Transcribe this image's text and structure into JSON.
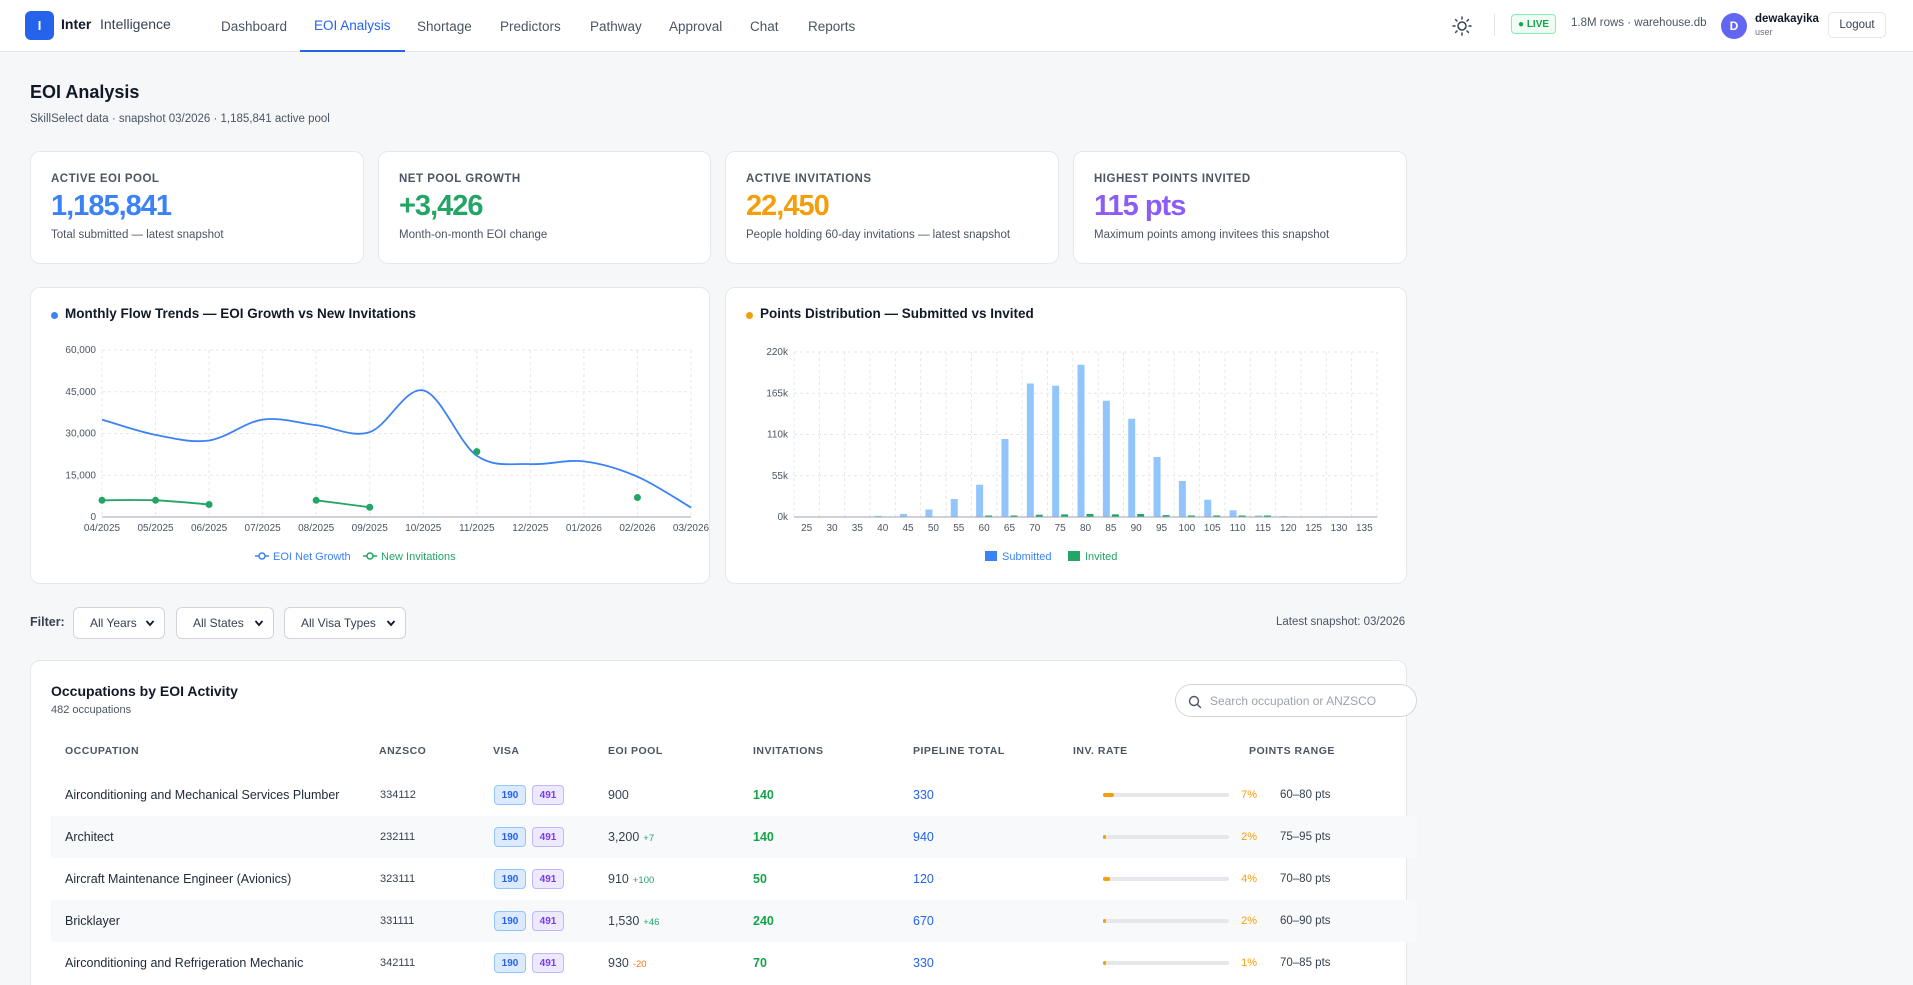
{
  "header": {
    "logo_letter": "I",
    "brand_bold": "Inter",
    "brand_light": "Intelligence",
    "nav": [
      {
        "label": "Dashboard",
        "active": false
      },
      {
        "label": "EOI Analysis",
        "active": true
      },
      {
        "label": "Shortage",
        "active": false
      },
      {
        "label": "Predictors",
        "active": false
      },
      {
        "label": "Pathway",
        "active": false
      },
      {
        "label": "Approval",
        "active": false
      },
      {
        "label": "Chat",
        "active": false
      },
      {
        "label": "Reports",
        "active": false
      }
    ],
    "live_badge": "● LIVE",
    "rows_info": "1.8M rows · warehouse.db",
    "avatar_letter": "D",
    "username": "dewakayika",
    "role": "user",
    "logout": "Logout"
  },
  "page": {
    "title": "EOI Analysis",
    "subtitle": "SkillSelect data · snapshot 03/2026 · 1,185,841 active pool"
  },
  "kpis": [
    {
      "label": "ACTIVE EOI POOL",
      "value": "1,185,841",
      "desc": "Total submitted — latest snapshot",
      "color": "#3b82f6"
    },
    {
      "label": "NET POOL GROWTH",
      "value": "+3,426",
      "desc": "Month-on-month EOI change",
      "color": "#22a565"
    },
    {
      "label": "ACTIVE INVITATIONS",
      "value": "22,450",
      "desc": "People holding 60-day invitations — latest snapshot",
      "color": "#f59e0b"
    },
    {
      "label": "HIGHEST POINTS INVITED",
      "value": "115 pts",
      "desc": "Maximum points among invitees this snapshot",
      "color": "#8b5cf6"
    }
  ],
  "charts": {
    "flow_title": "Monthly Flow Trends — EOI Growth vs New Invitations",
    "points_title": "Points Distribution — Submitted vs Invited"
  },
  "chart_data": [
    {
      "type": "line",
      "title": "Monthly Flow Trends — EOI Growth vs New Invitations",
      "categories": [
        "04/2025",
        "05/2025",
        "06/2025",
        "07/2025",
        "08/2025",
        "09/2025",
        "10/2025",
        "11/2025",
        "12/2025",
        "01/2026",
        "02/2026",
        "03/2026"
      ],
      "ylim": [
        0,
        60000
      ],
      "yticks": [
        "0",
        "15,000",
        "30,000",
        "45,000",
        "60,000"
      ],
      "grid": true,
      "legend": "bottom",
      "series": [
        {
          "name": "EOI Net Growth",
          "color": "#3b82f6",
          "values": [
            35000,
            29500,
            27500,
            35000,
            33000,
            30500,
            45500,
            22000,
            19000,
            20000,
            14500,
            3400
          ]
        },
        {
          "name": "New Invitations",
          "color": "#22a565",
          "values": [
            6000,
            6000,
            4500,
            null,
            6000,
            3500,
            null,
            23500,
            null,
            null,
            7000,
            null
          ]
        }
      ]
    },
    {
      "type": "bar",
      "title": "Points Distribution — Submitted vs Invited",
      "categories": [
        "25",
        "30",
        "35",
        "40",
        "45",
        "50",
        "55",
        "60",
        "65",
        "70",
        "75",
        "80",
        "85",
        "90",
        "95",
        "100",
        "105",
        "110",
        "115",
        "120",
        "125",
        "130",
        "135"
      ],
      "ylim": [
        0,
        220000
      ],
      "yticks": [
        "0k",
        "55k",
        "110k",
        "165k",
        "220k"
      ],
      "grid": true,
      "legend": "bottom",
      "series": [
        {
          "name": "Submitted",
          "color": "#93c5fd",
          "values": [
            0,
            0,
            300,
            1500,
            4000,
            10000,
            24000,
            43000,
            104000,
            178000,
            175000,
            203000,
            155000,
            131000,
            80000,
            48000,
            23000,
            9000,
            2000,
            1000,
            300,
            0,
            0
          ]
        },
        {
          "name": "Invited",
          "color": "#22a565",
          "values": [
            0,
            0,
            0,
            0,
            0,
            0,
            0,
            200,
            1000,
            3000,
            3500,
            4000,
            3500,
            4000,
            2500,
            1500,
            1000,
            500,
            200,
            0,
            0,
            0,
            0
          ]
        }
      ]
    }
  ],
  "filters": {
    "label": "Filter:",
    "years": "All Years",
    "states": "All States",
    "visa": "All Visa Types",
    "snapshot": "Latest snapshot: 03/2026"
  },
  "table": {
    "title": "Occupations by EOI Activity",
    "subtitle": "482 occupations",
    "search_placeholder": "Search occupation or ANZSCO",
    "headers": [
      "OCCUPATION",
      "ANZSCO",
      "VISA",
      "EOI POOL",
      "INVITATIONS",
      "PIPELINE TOTAL",
      "INV. RATE",
      "POINTS RANGE"
    ],
    "rows": [
      {
        "occupation": "Airconditioning and Mechanical Services Plumber",
        "anzsco": "334112",
        "visa": [
          "190",
          "491"
        ],
        "pool": "900",
        "delta": "",
        "delta_color": "#22a565",
        "invitations": "140",
        "pipeline": "330",
        "rate_pct": 7,
        "rate": "7%",
        "range": "60–80 pts"
      },
      {
        "occupation": "Architect",
        "anzsco": "232111",
        "visa": [
          "190",
          "491"
        ],
        "pool": "3,200",
        "delta": "+7",
        "delta_color": "#22a565",
        "invitations": "140",
        "pipeline": "940",
        "rate_pct": 2,
        "rate": "2%",
        "range": "75–95 pts"
      },
      {
        "occupation": "Aircraft Maintenance Engineer (Avionics)",
        "anzsco": "323111",
        "visa": [
          "190",
          "491"
        ],
        "pool": "910",
        "delta": "+100",
        "delta_color": "#22a565",
        "invitations": "50",
        "pipeline": "120",
        "rate_pct": 4,
        "rate": "4%",
        "range": "70–80 pts"
      },
      {
        "occupation": "Bricklayer",
        "anzsco": "331111",
        "visa": [
          "190",
          "491"
        ],
        "pool": "1,530",
        "delta": "+46",
        "delta_color": "#22a565",
        "invitations": "240",
        "pipeline": "670",
        "rate_pct": 2,
        "rate": "2%",
        "range": "60–90 pts"
      },
      {
        "occupation": "Airconditioning and Refrigeration Mechanic",
        "anzsco": "342111",
        "visa": [
          "190",
          "491"
        ],
        "pool": "930",
        "delta": "-20",
        "delta_color": "#f97316",
        "invitations": "70",
        "pipeline": "330",
        "rate_pct": 1,
        "rate": "1%",
        "range": "70–85 pts"
      }
    ]
  }
}
